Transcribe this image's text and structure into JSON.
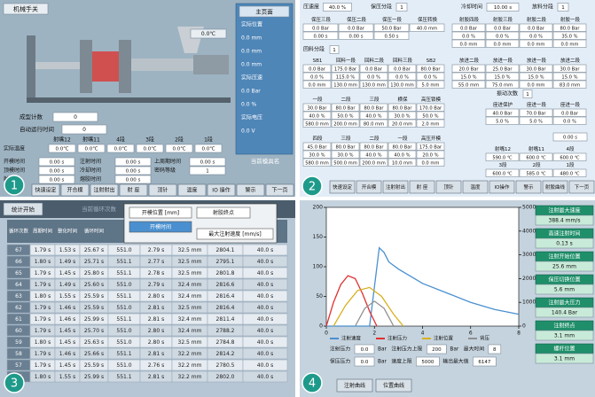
{
  "panel1": {
    "number": "1",
    "title": "机械手关",
    "temp": "0.0℃",
    "side": {
      "header": "主页面",
      "items": [
        "实际位置",
        "0.0 mm",
        "0.0 mm",
        "0.0 mm",
        "实际压速",
        "0.0 Bar",
        "0.0 %",
        "实际电压",
        "0.0 V"
      ]
    },
    "count_label": "成型计数",
    "count_value": "0",
    "auto_label": "自动运行时间",
    "auto_value": "0",
    "temp_headers": [
      "射嘴12",
      "射嘴11",
      "4段",
      "3段",
      "2段",
      "1段"
    ],
    "temp_row_label": "实际温度",
    "temp_values": [
      "0.0℃",
      "0.0℃",
      "0.0℃",
      "0.0℃",
      "0.0℃",
      "0.0℃"
    ],
    "times": [
      [
        "开模时间",
        "0.00 s",
        "注射时间",
        "0.00 s",
        "上周期时间",
        "0.00 s"
      ],
      [
        "顶模时间",
        "0.00 s",
        "冷却时间",
        "0.00 s",
        "密码等级",
        "1"
      ],
      [
        "射时间",
        "0.00 s",
        "熔胶时间",
        "0.00 s"
      ]
    ],
    "mold_label": "当前模具名",
    "buttons": [
      "快速设定",
      "开合模",
      "注射射出",
      "射 座",
      "顶针",
      "温度",
      "IO 操作",
      "警示",
      "下一页"
    ]
  },
  "panel2": {
    "number": "2",
    "top": [
      [
        "压速度",
        "40.0 %"
      ],
      [
        "保压分段",
        "1"
      ],
      [
        "冷却时间",
        "10.00 s"
      ],
      [
        "放料分段",
        "1"
      ]
    ],
    "sections": [
      [
        "回料分段",
        "1"
      ],
      [
        "振动次数",
        "1"
      ]
    ],
    "blocks": [
      {
        "headers": [
          "保压三段",
          "保压二段",
          "保压一段",
          "保压转换"
        ],
        "rows": [
          [
            "0.0 Bar",
            "0.0 Bar",
            "50.0 Bar",
            "40.0 mm"
          ],
          [
            "0.00 s",
            "0.00 s",
            "0.50 s"
          ]
        ]
      },
      {
        "headers": [
          "射胶四段",
          "射胶三段",
          "射胶二段",
          "射胶一段"
        ],
        "rows": [
          [
            "0.0 Bar",
            "0.0 Bar",
            "0.0 Bar",
            "80.0 Bar"
          ],
          [
            "0.0 %",
            "0.0 %",
            "0.0 %",
            "35.0 %"
          ],
          [
            "0.0 mm",
            "0.0 mm",
            "0.0 mm",
            "0.0 mm"
          ]
        ]
      },
      {
        "headers": [
          "SB1",
          "回料一段",
          "回料二段",
          "回料三段",
          "SB2"
        ],
        "rows": [
          [
            "0.0 Bar",
            "175.0 Bar",
            "0.0 Bar",
            "0.0 Bar",
            "80.0 Bar"
          ],
          [
            "0.0 %",
            "115.0 %",
            "0.0 %",
            "0.0 %",
            "0.0 %"
          ],
          [
            "0.0 mm",
            "130.0 mm",
            "130.0 mm",
            "130.0 mm",
            "5.0 mm"
          ]
        ]
      },
      {
        "headers": [
          "放进二段",
          "放进一段",
          "放进一段",
          "放进二段"
        ],
        "rows": [
          [
            "20.0 Bar",
            "25.0 Bar",
            "30.0 Bar",
            "30.0 Bar"
          ],
          [
            "15.0 %",
            "15.0 %",
            "15.0 %",
            "15.0 %"
          ],
          [
            "55.0 mm",
            "75.0 mm",
            "0.0 mm",
            "83.0 mm"
          ]
        ]
      },
      {
        "headers": [
          "一段",
          "二段",
          "三段",
          "横保",
          "高压锁模"
        ],
        "rows": [
          [
            "30.0 Bar",
            "80.0 Bar",
            "80.0 Bar",
            "80.0 Bar",
            "170.0 Bar"
          ],
          [
            "40.0 %",
            "50.0 %",
            "40.0 %",
            "30.0 %",
            "50.0 %"
          ],
          [
            "580.0 mm",
            "200.0 mm",
            "80.0 mm",
            "20.0 mm",
            "2.0 mm"
          ]
        ]
      },
      {
        "headers": [
          "座进保护",
          "座进一段",
          "座进一段"
        ],
        "rows": [
          [
            "40.0 Bar",
            "70.0 Bar",
            "0.0 Bar"
          ],
          [
            "5.0 %",
            "5.0 %",
            "0.0 %"
          ]
        ]
      },
      {
        "headers": [
          "四段",
          "三段",
          "二段",
          "一段",
          "高压开模"
        ],
        "rows": [
          [
            "45.0 Bar",
            "80.0 Bar",
            "80.0 Bar",
            "80.0 Bar",
            "175.0 Bar"
          ],
          [
            "30.0 %",
            "30.0 %",
            "40.0 %",
            "40.0 %",
            "20.0 %"
          ],
          [
            "580.0 mm",
            "500.0 mm",
            "200.0 mm",
            "10.0 mm",
            "0.0 mm"
          ]
        ]
      },
      {
        "headers": [
          "射嘴12",
          "射嘴11",
          "4段"
        ],
        "rows": [
          [
            "590.0 ℃",
            "600.0 ℃",
            "600.0 ℃"
          ]
        ]
      },
      {
        "headers": [
          "3段",
          "2段",
          "1段"
        ],
        "rows": [
          [
            "600.0 ℃",
            "585.0 ℃",
            "480.0 ℃"
          ]
        ]
      }
    ],
    "extra": "0.00 s",
    "buttons": [
      "快速设定",
      "开合模",
      "注射射出",
      "射 座",
      "顶针",
      "温度",
      "IO操作",
      "警示",
      "射胶曲线",
      "下一页"
    ]
  },
  "panel3": {
    "number": "3",
    "start": "统计开始",
    "current": "当前循环次数",
    "headers": [
      "循环次数",
      "周期时间",
      "整化时间",
      "循环时间",
      "切换位置"
    ],
    "rows": [
      [
        "67",
        "1.79 s",
        "1.53 s",
        "25.67 s",
        "551.0",
        "2.79 s",
        "32.5 mm",
        "2804.1",
        "40.0 s"
      ],
      [
        "66",
        "1.80 s",
        "1.49 s",
        "25.71 s",
        "551.1",
        "2.77 s",
        "32.5 mm",
        "2795.1",
        "40.0 s"
      ],
      [
        "65",
        "1.79 s",
        "1.45 s",
        "25.80 s",
        "551.1",
        "2.78 s",
        "32.5 mm",
        "2801.8",
        "40.0 s"
      ],
      [
        "64",
        "1.79 s",
        "1.49 s",
        "25.60 s",
        "551.0",
        "2.79 s",
        "32.4 mm",
        "2816.6",
        "40.0 s"
      ],
      [
        "63",
        "1.80 s",
        "1.55 s",
        "25.59 s",
        "551.1",
        "2.80 s",
        "32.4 mm",
        "2816.4",
        "40.0 s"
      ],
      [
        "62",
        "1.79 s",
        "1.46 s",
        "25.59 s",
        "551.0",
        "2.81 s",
        "32.5 mm",
        "2816.4",
        "40.0 s"
      ],
      [
        "61",
        "1.79 s",
        "1.46 s",
        "25.99 s",
        "551.1",
        "2.81 s",
        "32.4 mm",
        "2811.4",
        "40.0 s"
      ],
      [
        "60",
        "1.79 s",
        "1.45 s",
        "25.70 s",
        "551.0",
        "2.80 s",
        "32.4 mm",
        "2788.2",
        "40.0 s"
      ],
      [
        "59",
        "1.80 s",
        "1.45 s",
        "25.63 s",
        "551.0",
        "2.80 s",
        "32.5 mm",
        "2784.8",
        "40.0 s"
      ],
      [
        "58",
        "1.79 s",
        "1.46 s",
        "25.66 s",
        "551.1",
        "2.81 s",
        "32.2 mm",
        "2814.2",
        "40.0 s"
      ],
      [
        "57",
        "1.79 s",
        "1.45 s",
        "25.59 s",
        "551.0",
        "2.76 s",
        "32.2 mm",
        "2780.5",
        "40.0 s"
      ],
      [
        "56",
        "1.80 s",
        "1.55 s",
        "25.99 s",
        "551.1",
        "2.81 s",
        "32.2 mm",
        "2802.0",
        "40.0 s"
      ]
    ],
    "popup": [
      "开模位置 [mm]",
      "射胶终点",
      "开模时间",
      "最大注射速度 [mm/s]"
    ]
  },
  "panel4": {
    "number": "4",
    "fields": [
      [
        "注射压力",
        "0.0",
        "Bar",
        "注射压力上限",
        "200",
        "Bar",
        "最大时间",
        "8"
      ],
      [
        "保压压力",
        "0.0",
        "Bar",
        "速度上限",
        "5000",
        "输出最大值",
        "6147"
      ]
    ],
    "readouts": [
      [
        "注射最大速度",
        "388.4 mm/s"
      ],
      [
        "高速注射时间",
        "0.13 s"
      ],
      [
        "注射开始位置",
        "25.6 mm"
      ],
      [
        "保压切换位置",
        "5.6 mm"
      ],
      [
        "注射最大压力",
        "140.4 Bar"
      ],
      [
        "注射终点",
        "3.1 mm"
      ],
      [
        "螺杆位置",
        "3.1 mm"
      ]
    ],
    "buttons": [
      "注射曲线",
      "位置曲线"
    ]
  },
  "chart_data": {
    "type": "line",
    "xlim": [
      0,
      8
    ],
    "xticks": [
      0,
      2,
      4,
      6,
      8
    ],
    "ylim": [
      0,
      200
    ],
    "yticks": [
      0,
      50,
      100,
      150,
      200
    ],
    "y2lim": [
      0,
      5000
    ],
    "y2ticks": [
      0,
      1000,
      2000,
      3000,
      4000,
      5000
    ],
    "grid": false,
    "series": [
      {
        "name": "注射速度",
        "color": "#4a90d0",
        "axis": "y2",
        "x": [
          0,
          1.8,
          2.2,
          2.4,
          2.6,
          3.0,
          3.5,
          4,
          5,
          6,
          7,
          8
        ],
        "values": [
          0,
          0,
          3300,
          3100,
          2700,
          2400,
          2100,
          1800,
          1400,
          1000,
          700,
          500
        ]
      },
      {
        "name": "注射压力",
        "color": "#e03030",
        "x": [
          0,
          0.3,
          0.6,
          0.9,
          1.2,
          1.5,
          1.8,
          2.1
        ],
        "values": [
          0,
          40,
          70,
          85,
          80,
          55,
          25,
          0
        ]
      },
      {
        "name": "注射位置",
        "color": "#d8b020",
        "x": [
          0.3,
          0.8,
          1.3,
          1.8,
          2.3,
          2.8,
          3.2
        ],
        "values": [
          0,
          35,
          60,
          65,
          50,
          20,
          0
        ]
      },
      {
        "name": "背压",
        "color": "#909090",
        "x": [
          1.2,
          1.6,
          2.0,
          2.4,
          2.8
        ],
        "values": [
          0,
          30,
          42,
          30,
          0
        ]
      }
    ]
  }
}
